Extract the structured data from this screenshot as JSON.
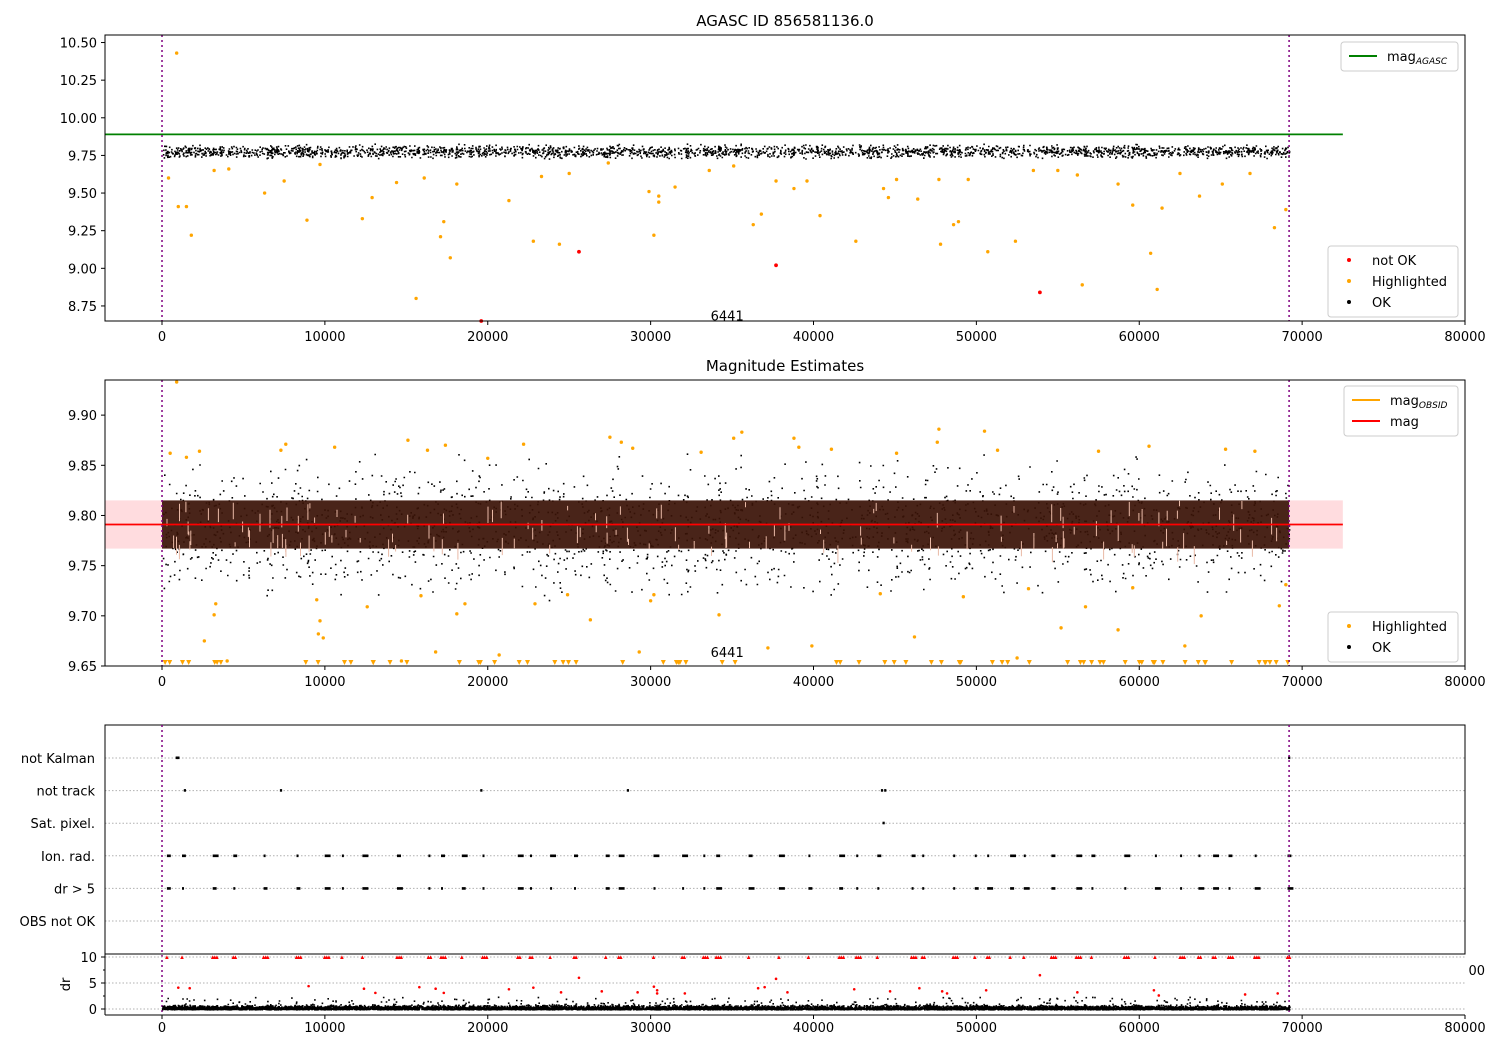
{
  "colors": {
    "ok": "#000000",
    "highlighted": "#ffa500",
    "not_ok": "#ff0000",
    "agasc_line": "#008000",
    "mag_line": "#ff0000",
    "band": "#ffc0c4",
    "band_dark": "#3a1408",
    "vline": "#800080"
  },
  "chart_data": [
    {
      "type": "scatter",
      "title": "AGASC ID 856581136.0",
      "xlim": [
        -3500,
        80000
      ],
      "ylim": [
        8.65,
        10.55
      ],
      "x_ticks": [
        0,
        10000,
        20000,
        30000,
        40000,
        50000,
        60000,
        70000,
        80000
      ],
      "y_ticks": [
        "8.75",
        "9.00",
        "9.25",
        "9.50",
        "9.75",
        "10.00",
        "10.25",
        "10.50"
      ],
      "annotation": {
        "text": "6441",
        "x": 34700,
        "y": 8.68
      },
      "vlines": [
        0,
        69200
      ],
      "lines": [
        {
          "name": "mag_AGASC",
          "y": 9.89,
          "x": [
            -3500,
            72500
          ],
          "color": "agasc_line"
        }
      ],
      "ok_band": {
        "x": [
          0,
          69200
        ],
        "center": 9.78,
        "half_width": 0.05
      },
      "series": [
        {
          "name": "not OK",
          "color": "not_ok",
          "points": [
            [
              25600,
              9.11
            ],
            [
              37700,
              9.02
            ],
            [
              53900,
              8.84
            ],
            [
              19600,
              8.65
            ]
          ]
        },
        {
          "name": "Highlighted",
          "color": "highlighted",
          "points": [
            [
              900,
              10.43
            ],
            [
              400,
              9.6
            ],
            [
              1000,
              9.41
            ],
            [
              1500,
              9.41
            ],
            [
              1800,
              9.22
            ],
            [
              3200,
              9.65
            ],
            [
              4100,
              9.66
            ],
            [
              6300,
              9.5
            ],
            [
              7500,
              9.58
            ],
            [
              8900,
              9.32
            ],
            [
              9700,
              9.69
            ],
            [
              12300,
              9.33
            ],
            [
              12900,
              9.47
            ],
            [
              14400,
              9.57
            ],
            [
              15600,
              8.8
            ],
            [
              16100,
              9.6
            ],
            [
              17100,
              9.21
            ],
            [
              17300,
              9.31
            ],
            [
              17700,
              9.07
            ],
            [
              18100,
              9.56
            ],
            [
              21300,
              9.45
            ],
            [
              22800,
              9.18
            ],
            [
              23300,
              9.61
            ],
            [
              24400,
              9.16
            ],
            [
              25000,
              9.63
            ],
            [
              27400,
              9.7
            ],
            [
              29900,
              9.51
            ],
            [
              30200,
              9.22
            ],
            [
              30500,
              9.48
            ],
            [
              30500,
              9.44
            ],
            [
              31500,
              9.54
            ],
            [
              33600,
              9.65
            ],
            [
              35100,
              9.68
            ],
            [
              36300,
              9.29
            ],
            [
              36800,
              9.36
            ],
            [
              37700,
              9.58
            ],
            [
              38800,
              9.53
            ],
            [
              39600,
              9.58
            ],
            [
              40400,
              9.35
            ],
            [
              42600,
              9.18
            ],
            [
              44300,
              9.53
            ],
            [
              44600,
              9.47
            ],
            [
              45100,
              9.59
            ],
            [
              46400,
              9.46
            ],
            [
              47700,
              9.59
            ],
            [
              47800,
              9.16
            ],
            [
              48600,
              9.29
            ],
            [
              48900,
              9.31
            ],
            [
              49500,
              9.59
            ],
            [
              50700,
              9.11
            ],
            [
              52400,
              9.18
            ],
            [
              53500,
              9.65
            ],
            [
              55000,
              9.65
            ],
            [
              56200,
              9.62
            ],
            [
              56500,
              8.89
            ],
            [
              58700,
              9.56
            ],
            [
              59600,
              9.42
            ],
            [
              60700,
              9.1
            ],
            [
              61100,
              8.86
            ],
            [
              61400,
              9.4
            ],
            [
              62500,
              9.63
            ],
            [
              63700,
              9.48
            ],
            [
              65100,
              9.56
            ],
            [
              66800,
              9.63
            ],
            [
              68300,
              9.27
            ],
            [
              69000,
              9.39
            ]
          ]
        },
        {
          "name": "OK",
          "color": "ok",
          "range": [
            9.73,
            9.83
          ]
        }
      ],
      "legend_lines": [
        {
          "name": "mag_AGASC",
          "base": "mag",
          "sub": "AGASC",
          "color": "agasc_line"
        }
      ],
      "legend_points": [
        {
          "name": "not OK",
          "color": "not_ok"
        },
        {
          "name": "Highlighted",
          "color": "highlighted"
        },
        {
          "name": "OK",
          "color": "ok"
        }
      ]
    },
    {
      "type": "scatter",
      "title": "Magnitude Estimates",
      "xlim": [
        -3500,
        80000
      ],
      "ylim": [
        9.65,
        9.935
      ],
      "x_ticks": [
        0,
        10000,
        20000,
        30000,
        40000,
        50000,
        60000,
        70000,
        80000
      ],
      "y_ticks": [
        "9.65",
        "9.70",
        "9.75",
        "9.80",
        "9.85",
        "9.90"
      ],
      "annotation": {
        "text": "6441",
        "x": 34700,
        "y": 9.663
      },
      "vlines": [
        0,
        69200
      ],
      "lines": [
        {
          "name": "mag",
          "y": 9.791,
          "x": [
            -3500,
            72500
          ],
          "color": "mag_line"
        }
      ],
      "band": {
        "ymin": 9.767,
        "ymax": 9.815,
        "x": [
          -3500,
          72500
        ]
      },
      "series": [
        {
          "name": "Highlighted",
          "color": "highlighted",
          "points": [
            [
              900,
              9.933
            ],
            [
              500,
              9.862
            ],
            [
              1500,
              9.858
            ],
            [
              2300,
              9.864
            ],
            [
              2600,
              9.675
            ],
            [
              3200,
              9.701
            ],
            [
              3300,
              9.712
            ],
            [
              4000,
              9.655
            ],
            [
              7300,
              9.865
            ],
            [
              7600,
              9.871
            ],
            [
              9500,
              9.716
            ],
            [
              9600,
              9.682
            ],
            [
              9700,
              9.695
            ],
            [
              9900,
              9.678
            ],
            [
              10600,
              9.868
            ],
            [
              12600,
              9.709
            ],
            [
              14700,
              9.655
            ],
            [
              15100,
              9.875
            ],
            [
              15900,
              9.72
            ],
            [
              16300,
              9.865
            ],
            [
              16800,
              9.664
            ],
            [
              17400,
              9.87
            ],
            [
              18100,
              9.702
            ],
            [
              18600,
              9.712
            ],
            [
              20000,
              9.857
            ],
            [
              20700,
              9.661
            ],
            [
              22200,
              9.871
            ],
            [
              22900,
              9.712
            ],
            [
              24900,
              9.721
            ],
            [
              26300,
              9.696
            ],
            [
              27500,
              9.878
            ],
            [
              28200,
              9.873
            ],
            [
              28900,
              9.867
            ],
            [
              29300,
              9.664
            ],
            [
              30000,
              9.715
            ],
            [
              30200,
              9.721
            ],
            [
              33100,
              9.863
            ],
            [
              34200,
              9.701
            ],
            [
              35100,
              9.877
            ],
            [
              35600,
              9.883
            ],
            [
              37200,
              9.668
            ],
            [
              38800,
              9.877
            ],
            [
              39100,
              9.868
            ],
            [
              39900,
              9.67
            ],
            [
              41100,
              9.866
            ],
            [
              44100,
              9.722
            ],
            [
              45100,
              9.862
            ],
            [
              46200,
              9.679
            ],
            [
              47600,
              9.873
            ],
            [
              47700,
              9.886
            ],
            [
              49200,
              9.719
            ],
            [
              50500,
              9.884
            ],
            [
              51300,
              9.865
            ],
            [
              52500,
              9.658
            ],
            [
              53200,
              9.727
            ],
            [
              55200,
              9.688
            ],
            [
              56700,
              9.709
            ],
            [
              57500,
              9.864
            ],
            [
              58700,
              9.686
            ],
            [
              59600,
              9.728
            ],
            [
              60600,
              9.869
            ],
            [
              62800,
              9.67
            ],
            [
              63800,
              9.7
            ],
            [
              65300,
              9.866
            ],
            [
              67100,
              9.864
            ],
            [
              68600,
              9.71
            ],
            [
              69000,
              9.731
            ]
          ]
        },
        {
          "name": "OK",
          "color": "ok",
          "range": [
            9.715,
            9.862
          ]
        }
      ],
      "legend_lines": [
        {
          "name": "mag_OBSID",
          "base": "mag",
          "sub": "OBSID",
          "color": "highlighted"
        },
        {
          "name": "mag",
          "base": "mag",
          "sub": "",
          "color": "mag_line"
        }
      ],
      "legend_points": [
        {
          "name": "Highlighted",
          "color": "highlighted"
        },
        {
          "name": "OK",
          "color": "ok"
        }
      ]
    },
    {
      "type": "scatter",
      "title": "",
      "xlim": [
        -3500,
        80000
      ],
      "vlines": [
        0,
        69200
      ],
      "categories": [
        "not Kalman",
        "not track",
        "Sat. pixel.",
        "Ion. rad.",
        "dr > 5",
        "OBS not OK"
      ],
      "flags": {
        "not Kalman": [
          900,
          1000,
          69200
        ],
        "not track": [
          1400,
          7300,
          19600,
          28600,
          44200,
          44400
        ],
        "Sat. pixel.": [
          44300
        ]
      },
      "dr": {
        "ylabel": "dr",
        "ylim": [
          -0.5,
          10.5
        ],
        "y_ticks": [
          "0",
          "5",
          "10"
        ],
        "clipped_at": 10,
        "outliers": [
          [
            1000,
            4.1
          ],
          [
            1700,
            4.0
          ],
          [
            9000,
            4.4
          ],
          [
            12400,
            3.9
          ],
          [
            13100,
            3.1
          ],
          [
            15800,
            4.2
          ],
          [
            16800,
            3.9
          ],
          [
            17300,
            3.1
          ],
          [
            21300,
            3.8
          ],
          [
            22800,
            4.1
          ],
          [
            24500,
            3.2
          ],
          [
            25600,
            6.0
          ],
          [
            27000,
            3.4
          ],
          [
            29200,
            3.2
          ],
          [
            30200,
            4.3
          ],
          [
            30400,
            3.6
          ],
          [
            30400,
            3.0
          ],
          [
            32100,
            3.0
          ],
          [
            36600,
            4.0
          ],
          [
            37000,
            4.2
          ],
          [
            37700,
            5.8
          ],
          [
            38400,
            3.2
          ],
          [
            42500,
            3.8
          ],
          [
            44700,
            3.4
          ],
          [
            46500,
            4.0
          ],
          [
            47900,
            3.4
          ],
          [
            48200,
            3.0
          ],
          [
            50600,
            3.6
          ],
          [
            53900,
            6.5
          ],
          [
            56200,
            3.2
          ],
          [
            60900,
            3.6
          ],
          [
            61200,
            2.6
          ],
          [
            66500,
            2.8
          ],
          [
            68500,
            3.0
          ]
        ]
      }
    }
  ],
  "stray_label": "00"
}
